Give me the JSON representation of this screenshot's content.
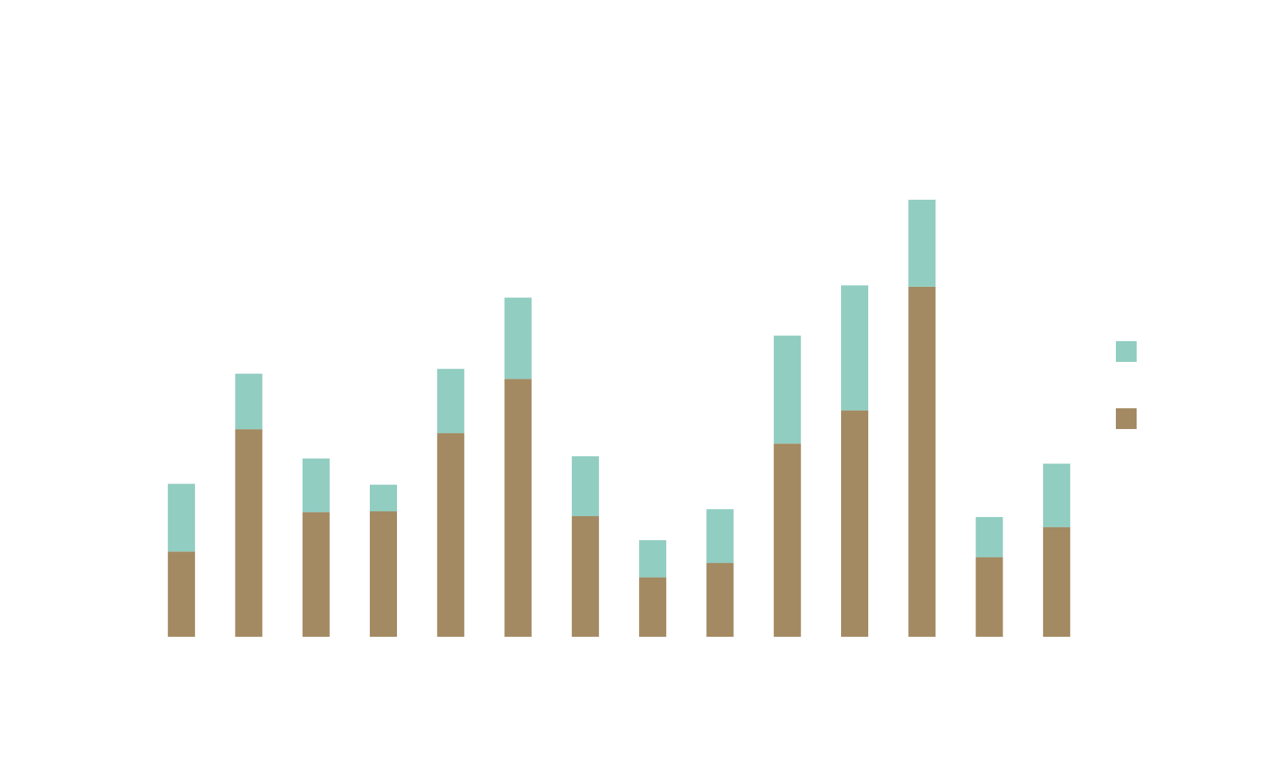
{
  "colors": {
    "background": "#ffffff",
    "series_top": "#91cdc1",
    "series_bottom": "#a38a62"
  },
  "chart_data": {
    "type": "bar",
    "stacked": true,
    "title": "",
    "xlabel": "",
    "ylabel": "",
    "categories": [
      "",
      "",
      "",
      "",
      "",
      "",
      "",
      "",
      "",
      "",
      "",
      "",
      "",
      ""
    ],
    "ylim": [
      0,
      100
    ],
    "grid": false,
    "legend": {
      "placement": "right",
      "entries": [
        {
          "name": "",
          "color": "#91cdc1"
        },
        {
          "name": "",
          "color": "#a38a62"
        }
      ]
    },
    "series": [
      {
        "name": "",
        "color": "#a38a62",
        "values": [
          19.5,
          47.5,
          28.5,
          28.7,
          46.6,
          59.0,
          27.6,
          13.6,
          16.9,
          44.2,
          51.8,
          80.1,
          18.2,
          25.1
        ]
      },
      {
        "name": "",
        "color": "#91cdc1",
        "values": [
          15.5,
          12.7,
          12.3,
          6.1,
          14.7,
          18.6,
          13.7,
          8.5,
          12.3,
          24.7,
          28.6,
          19.9,
          9.2,
          14.5
        ]
      }
    ]
  }
}
